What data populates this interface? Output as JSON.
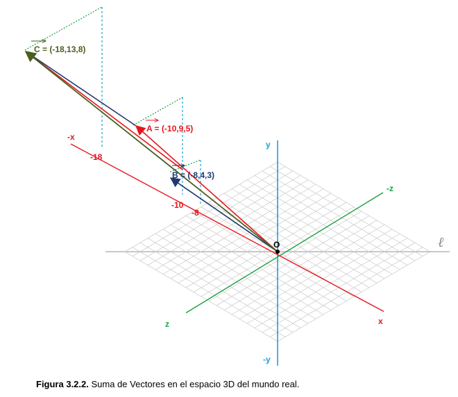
{
  "axes": {
    "x_pos": "x",
    "x_neg": "-x",
    "y_pos": "y",
    "y_neg": "-y",
    "z_pos": "z",
    "z_neg": "-z",
    "origin": "O",
    "plane_symbol": "ℓ"
  },
  "ticks": {
    "t18": "-18",
    "t10": "-10",
    "t8": "-8"
  },
  "vectors": {
    "A": {
      "label": "A = (-10,9,5)",
      "color": "#e8141c"
    },
    "B": {
      "label": "B = (-8,4,3)",
      "color": "#1f3a6e"
    },
    "C": {
      "label": "C = (-18,13,8)",
      "color": "#4a5e1f"
    }
  },
  "colors": {
    "x_axis": "#e8141c",
    "y_axis": "#1aa0d8",
    "z_axis": "#1aa040",
    "grid": "#c8c8c8",
    "guide_blue": "#1aa0d8",
    "guide_green": "#1aa040"
  },
  "caption": {
    "prefix": "Figura 3.2.2.",
    "text": " Suma de Vectores en el espacio 3D del mundo real."
  }
}
